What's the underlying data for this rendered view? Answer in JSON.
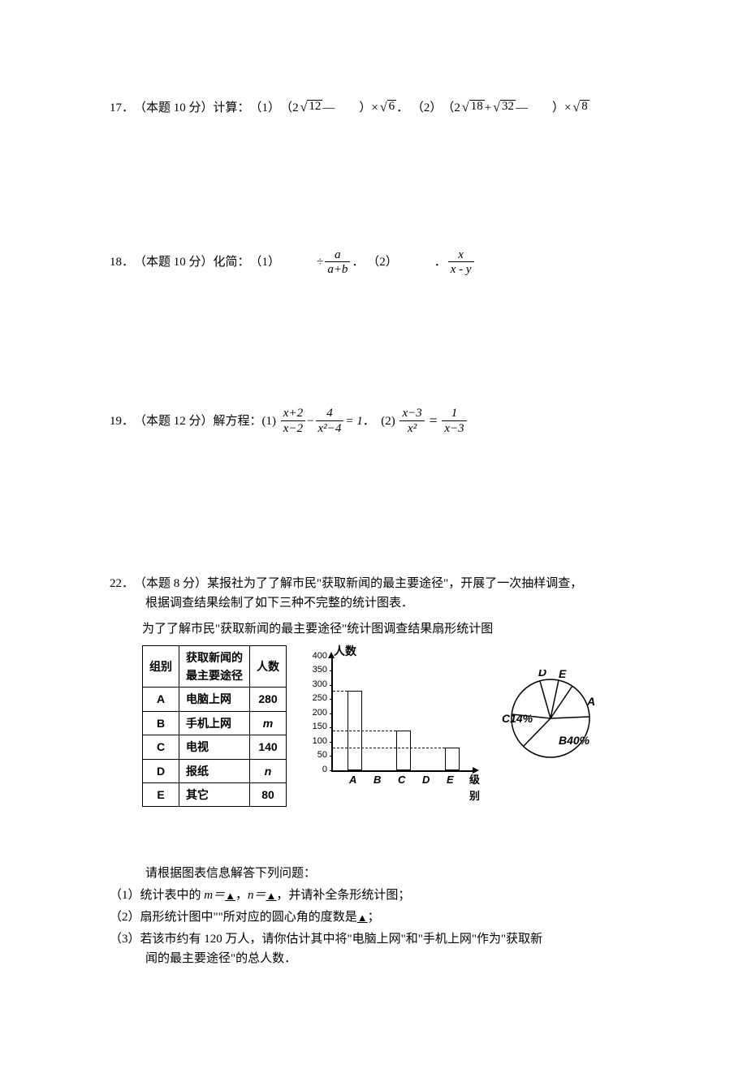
{
  "p17": {
    "num": "17．",
    "score": "（本题 10 分）",
    "label": "计算：",
    "part1_label": "（1）",
    "expr1_pre": "（2",
    "rad1": "12",
    "expr1_mid": "—　　）×",
    "expr1_root": "6",
    "expr1_period": "．",
    "part2_label": "（2）",
    "expr2_pre": "（2",
    "rad2a": "18",
    "expr2_plus": "+",
    "rad2b": "32",
    "expr2_mid": "—　　）×",
    "expr2_root": "8"
  },
  "p18": {
    "num": "18．",
    "score": "（本题 10 分）",
    "label": "化简：",
    "part1_label": "（1）",
    "gap1": "　　　",
    "div": "÷",
    "frac1_num": "a",
    "frac1_den": "a+b",
    "period1": "．",
    "part2_label": "（2）",
    "gap2": "　　　．",
    "frac2_num": "x",
    "frac2_den": "x - y"
  },
  "p19": {
    "num": "19．",
    "score": "（本题 12 分）",
    "label": "解方程：",
    "part1_label": "(1)",
    "f1_num": "x+2",
    "f1_den": "x−2",
    "minus": "−",
    "f2_num": "4",
    "f2_den": "x²−4",
    "eq1_rhs": "= 1",
    "period1": "．",
    "part2_label": "(2)",
    "f3_num": "x−3",
    "f3_den": "x²",
    "eq": "=",
    "f4_num": "1",
    "f4_den": "x−3"
  },
  "p22": {
    "num": "22．",
    "score": "（本题 8 分）",
    "intro1": "某报社为了了解市民\"获取新闻的最主要途径\"，开展了一次抽样调查，",
    "intro2": "根据调查结果绘制了如下三种不完整的统计图表．",
    "fig_title": "为了了解市民\"获取新闻的最主要途径\"统计图调查结果扇形统计图",
    "table": {
      "h1": "组别",
      "h2": "获取新闻的\n最主要途径",
      "h3": "人数",
      "rows": [
        [
          "A",
          "电脑上网",
          "280"
        ],
        [
          "B",
          "手机上网",
          "m"
        ],
        [
          "C",
          "电视",
          "140"
        ],
        [
          "D",
          "报纸",
          "n"
        ],
        [
          "E",
          "其它",
          "80"
        ]
      ]
    },
    "bar": {
      "ytitle": "人数",
      "ymax": 400,
      "ystep": 50,
      "yticks": [
        0,
        50,
        100,
        150,
        200,
        250,
        300,
        350,
        400
      ],
      "bars": [
        {
          "label": "A",
          "value": 280
        },
        {
          "label": "B",
          "value": null
        },
        {
          "label": "C",
          "value": 140
        },
        {
          "label": "D",
          "value": null
        },
        {
          "label": "E",
          "value": 80
        }
      ],
      "x_end": "级别",
      "bar_border": "#000000",
      "bar_fill": "#ffffff"
    },
    "pie": {
      "labels": {
        "A": "A",
        "B": "B40%",
        "C": "C14%",
        "D": "D",
        "E": "E"
      },
      "stroke": "#000000"
    },
    "after": "请根据图表信息解答下列问题：",
    "q1_pre": "（1）统计表中的 ",
    "q1_m": "m＝",
    "q1_sep": "，",
    "q1_n": "n＝",
    "q1_post": "，并请补全条形统计图；",
    "q2": "（2）扇形统计图中\"\"所对应的圆心角的度数是",
    "q2_post": "；",
    "q3a": "（3）若该市约有 120 万人，请你估计其中将\"电脑上网\"和\"手机上网\"作为\"获取新",
    "q3b": "闻的最主要途径\"的总人数．",
    "blank": "▲"
  }
}
